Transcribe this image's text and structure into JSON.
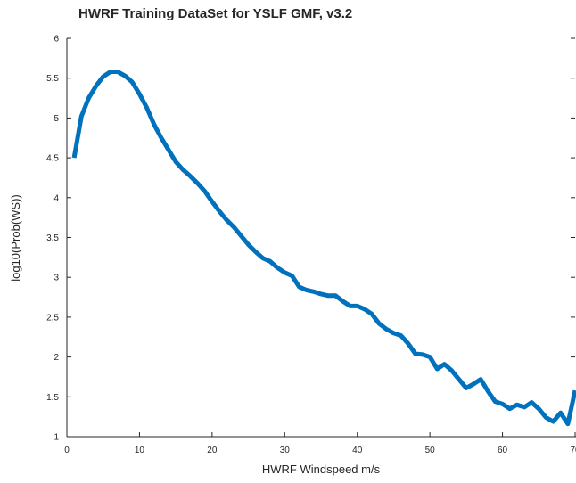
{
  "chart_data": {
    "type": "line",
    "title": "HWRF Training DataSet for YSLF GMF, v3.2",
    "x_label": "HWRF Windspeed m/s",
    "y_label": "log10(Prob(WS))",
    "x": [
      1,
      2,
      3,
      4,
      5,
      6,
      7,
      8,
      9,
      10,
      11,
      12,
      13,
      14,
      15,
      16,
      17,
      18,
      19,
      20,
      21,
      22,
      23,
      24,
      25,
      26,
      27,
      28,
      29,
      30,
      31,
      32,
      33,
      34,
      35,
      36,
      37,
      38,
      39,
      40,
      41,
      42,
      43,
      44,
      45,
      46,
      47,
      48,
      49,
      50,
      51,
      52,
      53,
      54,
      55,
      56,
      57,
      58,
      59,
      60,
      61,
      62,
      63,
      64,
      65,
      66,
      67,
      68,
      69,
      70
    ],
    "series": [
      {
        "name": "log10(Prob(WS))",
        "color": "#0072bd",
        "values": [
          4.5,
          5.02,
          5.25,
          5.4,
          5.52,
          5.58,
          5.58,
          5.53,
          5.45,
          5.3,
          5.13,
          4.92,
          4.75,
          4.6,
          4.45,
          4.35,
          4.27,
          4.18,
          4.08,
          3.95,
          3.83,
          3.72,
          3.63,
          3.52,
          3.41,
          3.32,
          3.24,
          3.2,
          3.12,
          3.06,
          3.02,
          2.88,
          2.84,
          2.82,
          2.79,
          2.77,
          2.77,
          2.7,
          2.64,
          2.64,
          2.6,
          2.54,
          2.42,
          2.35,
          2.3,
          2.27,
          2.17,
          2.04,
          2.03,
          2.0,
          1.85,
          1.91,
          1.83,
          1.72,
          1.61,
          1.66,
          1.72,
          1.57,
          1.44,
          1.41,
          1.35,
          1.4,
          1.37,
          1.43,
          1.35,
          1.24,
          1.19,
          1.3,
          1.16,
          1.58
        ]
      }
    ],
    "xlim": [
      0,
      70
    ],
    "xticks": [
      0,
      10,
      20,
      30,
      40,
      50,
      60,
      70
    ],
    "ylim": [
      1,
      6
    ],
    "yticks": [
      1,
      1.5,
      2,
      2.5,
      3,
      3.5,
      4,
      4.5,
      5,
      5.5,
      6
    ]
  }
}
